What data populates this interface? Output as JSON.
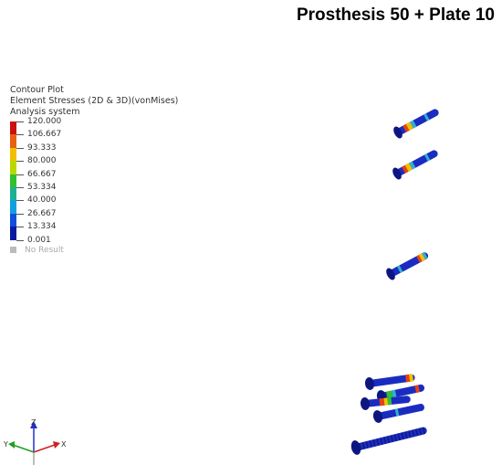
{
  "title": "Prosthesis 50 + Plate 10",
  "legend": {
    "line1": "Contour Plot",
    "line2": "Element Stresses (2D & 3D)(vonMises)",
    "line3": "Analysis system",
    "values": [
      "120.000",
      "106.667",
      "93.333",
      "80.000",
      "66.667",
      "53.334",
      "40.000",
      "26.667",
      "13.334",
      "0.001"
    ],
    "colors": [
      "#cc1010",
      "#e86010",
      "#f0c000",
      "#b8d800",
      "#30c030",
      "#20b090",
      "#10a0e0",
      "#1050d8",
      "#0a1aa0"
    ],
    "no_result": "No Result",
    "no_result_color": "#bbbbbb"
  },
  "axes": {
    "z": "Z",
    "y": "Y",
    "x": "X"
  },
  "colors": {
    "screw": "#1828b8",
    "screw_dark": "#0d1680",
    "hot": "#e84010",
    "warm": "#f0c000",
    "mid": "#30b0d0"
  }
}
